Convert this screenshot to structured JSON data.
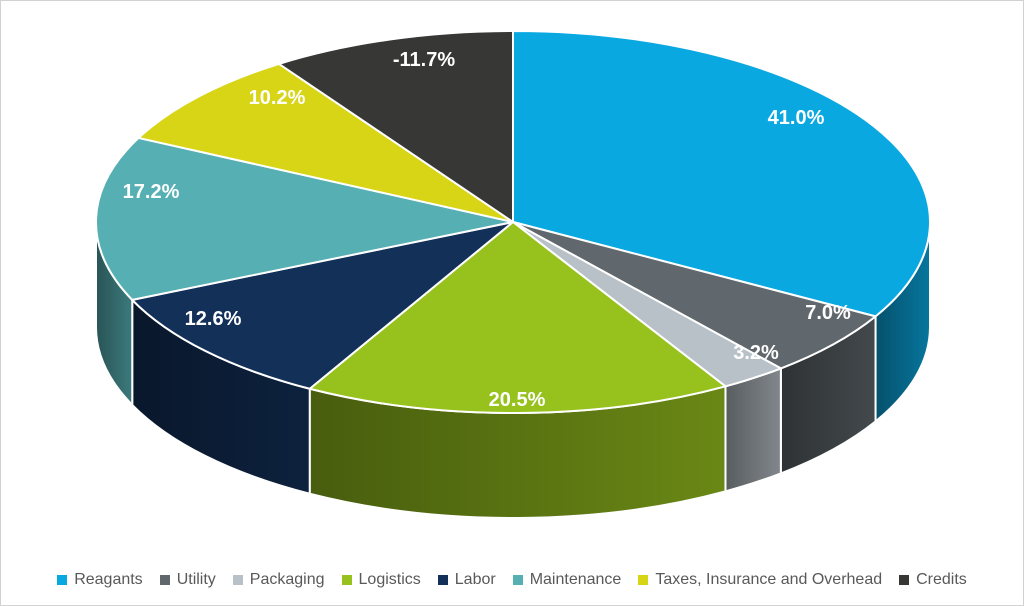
{
  "chart_data": {
    "type": "pie",
    "style": "3d",
    "title": "",
    "legend_position": "bottom",
    "background": "#FFFFFF",
    "border_color": "#D2D2D2",
    "data_label_color": "#FFFFFF",
    "legend_text_color": "#595959",
    "slices": [
      {
        "label": "Reagants",
        "value": 41.0,
        "display": "41.0%",
        "color": "#0AA8E1"
      },
      {
        "label": "Utility",
        "value": 7.0,
        "display": "7.0%",
        "color": "#60686D"
      },
      {
        "label": "Packaging",
        "value": 3.2,
        "display": "3.2%",
        "color": "#B8C1C8"
      },
      {
        "label": "Logistics",
        "value": 20.5,
        "display": "20.5%",
        "color": "#97C21E"
      },
      {
        "label": "Labor",
        "value": 12.6,
        "display": "12.6%",
        "color": "#133059"
      },
      {
        "label": "Maintenance",
        "value": 17.2,
        "display": "17.2%",
        "color": "#56AFB3"
      },
      {
        "label": "Taxes, Insurance and Overhead",
        "value": 10.2,
        "display": "10.2%",
        "color": "#D8D517"
      },
      {
        "label": "Credits",
        "value": -11.7,
        "display": "-11.7%",
        "color": "#373735"
      }
    ]
  }
}
